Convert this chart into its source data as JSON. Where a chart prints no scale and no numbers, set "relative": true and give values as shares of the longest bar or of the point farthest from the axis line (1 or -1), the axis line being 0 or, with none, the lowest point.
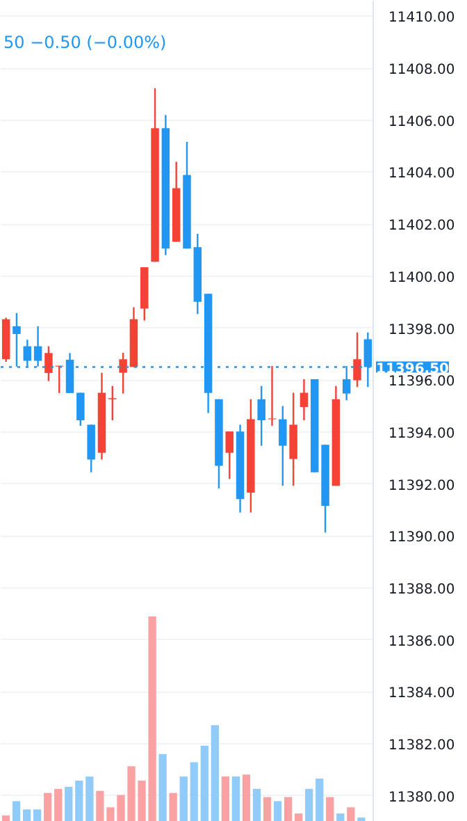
{
  "chart_data": [
    {
      "type": "candlestick",
      "categories": [
        null,
        null,
        null,
        null,
        null,
        null,
        null,
        null,
        null,
        null,
        null,
        null,
        null,
        null,
        null,
        null,
        null,
        null,
        null,
        null,
        null,
        null,
        null,
        null,
        null,
        null,
        null,
        null,
        null,
        null,
        null,
        null,
        null,
        null,
        null
      ],
      "ohlc": [
        [
          11396.8,
          11398.4,
          11396.7,
          11398.34
        ],
        [
          11398.07,
          11398.58,
          11396.52,
          11397.77
        ],
        [
          11397.3,
          11397.55,
          11396.52,
          11396.74
        ],
        [
          11397.3,
          11398.07,
          11396.52,
          11396.74
        ],
        [
          11396.27,
          11397.3,
          11395.96,
          11397.04
        ],
        [
          11396.52,
          11396.55,
          11395.5,
          11396.55
        ],
        [
          11396.78,
          11397.04,
          11395.5,
          11395.5
        ],
        [
          11395.51,
          11395.51,
          11394.24,
          11394.45
        ],
        [
          11394.28,
          11394.28,
          11392.45,
          11392.94
        ],
        [
          11393.2,
          11396.28,
          11392.94,
          11395.51
        ],
        [
          11395.26,
          11395.77,
          11394.45,
          11395.3
        ],
        [
          11396.28,
          11397.05,
          11395.48,
          11396.8
        ],
        [
          11396.5,
          11398.8,
          11396.5,
          11398.34
        ],
        [
          11398.75,
          11400.34,
          11398.29,
          11400.34
        ],
        [
          11400.55,
          11407.23,
          11400.55,
          11405.69
        ],
        [
          11405.69,
          11406.2,
          11400.81,
          11401.06
        ],
        [
          11401.32,
          11404.4,
          11401.32,
          11403.38
        ],
        [
          11403.89,
          11405.17,
          11401.06,
          11401.06
        ],
        [
          11401.11,
          11401.63,
          11398.54,
          11399.01
        ],
        [
          11399.32,
          11399.32,
          11394.73,
          11395.5
        ],
        [
          11395.26,
          11395.26,
          11391.83,
          11392.7
        ],
        [
          11393.2,
          11394.02,
          11392.19,
          11394.02
        ],
        [
          11394.02,
          11394.28,
          11390.9,
          11391.42
        ],
        [
          11391.67,
          11395.26,
          11390.9,
          11394.49
        ],
        [
          11395.26,
          11395.77,
          11393.47,
          11394.45
        ],
        [
          11394.49,
          11396.54,
          11394.24,
          11394.52
        ],
        [
          11394.49,
          11395.0,
          11391.93,
          11393.47
        ],
        [
          11392.96,
          11395.51,
          11391.93,
          11394.28
        ],
        [
          11394.96,
          11396.03,
          11394.45,
          11395.51
        ],
        [
          11396.03,
          11396.03,
          11392.45,
          11392.45
        ],
        [
          11393.51,
          11393.51,
          11390.13,
          11391.16
        ],
        [
          11391.93,
          11395.77,
          11391.93,
          11395.26
        ],
        [
          11396.03,
          11396.54,
          11395.22,
          11395.48
        ],
        [
          11395.99,
          11397.83,
          11395.73,
          11396.8
        ],
        [
          11397.57,
          11397.83,
          11395.73,
          11396.5
        ]
      ],
      "colors": [
        "#f44336",
        "#2196f3",
        "#2196f3",
        "#2196f3",
        "#f44336",
        "#f44336",
        "#2196f3",
        "#2196f3",
        "#2196f3",
        "#f44336",
        "#f44336",
        "#f44336",
        "#f44336",
        "#f44336",
        "#f44336",
        "#2196f3",
        "#f44336",
        "#2196f3",
        "#2196f3",
        "#2196f3",
        "#2196f3",
        "#f44336",
        "#2196f3",
        "#f44336",
        "#2196f3",
        "#f44336",
        "#2196f3",
        "#f44336",
        "#f44336",
        "#2196f3",
        "#2196f3",
        "#f44336",
        "#2196f3",
        "#f44336",
        "#2196f3"
      ],
      "ylim": [
        11379,
        11410.6
      ],
      "yticks": [
        {
          "value": 11380,
          "label": "11380.00"
        },
        {
          "value": 11382,
          "label": "11382.00"
        },
        {
          "value": 11384,
          "label": "11384.00"
        },
        {
          "value": 11386,
          "label": "11386.00"
        },
        {
          "value": 11388,
          "label": "11388.00"
        },
        {
          "value": 11390,
          "label": "11390.00"
        },
        {
          "value": 11392,
          "label": "11392.00"
        },
        {
          "value": 11394,
          "label": "11394.00"
        },
        {
          "value": 11396,
          "label": "11396.00"
        },
        {
          "value": 11398,
          "label": "11398.00"
        },
        {
          "value": 11400,
          "label": "11400.00"
        },
        {
          "value": 11402,
          "label": "11402.00"
        },
        {
          "value": 11404,
          "label": "11404.00"
        },
        {
          "value": 11406,
          "label": "11406.00"
        },
        {
          "value": 11408,
          "label": "11408.00"
        },
        {
          "value": 11410,
          "label": "11410.00"
        }
      ],
      "ref_lines": [
        {
          "axis": "y",
          "value": 11396.5,
          "label": "11396.50",
          "color": "#2196f3",
          "line_style": "dotted"
        }
      ],
      "annotations": [
        "50 −0.50 (−0.00%)"
      ],
      "grid": "y",
      "tick_labels": "y"
    },
    {
      "type": "bar",
      "relative": true,
      "categories": [
        null,
        null,
        null,
        null,
        null,
        null,
        null,
        null,
        null,
        null,
        null,
        null,
        null,
        null,
        null,
        null,
        null,
        null,
        null,
        null,
        null,
        null,
        null,
        null,
        null,
        null,
        null,
        null,
        null,
        null,
        null,
        null,
        null,
        null,
        null
      ],
      "values": [
        0.03,
        0.1,
        0.06,
        0.06,
        0.14,
        0.16,
        0.17,
        0.2,
        0.22,
        0.15,
        0.07,
        0.13,
        0.27,
        0.2,
        1,
        0.33,
        0.14,
        0.22,
        0.29,
        0.37,
        0.47,
        0.22,
        0.22,
        0.23,
        0.16,
        0.12,
        0.1,
        0.12,
        0.04,
        0.16,
        0.21,
        0.12,
        0.04,
        0.07,
        0.02
      ],
      "colors": [
        "#faa1a4",
        "#90cbf9",
        "#90cbf9",
        "#90cbf9",
        "#faa1a4",
        "#faa1a4",
        "#90cbf9",
        "#90cbf9",
        "#90cbf9",
        "#faa1a4",
        "#faa1a4",
        "#faa1a4",
        "#faa1a4",
        "#faa1a4",
        "#faa1a4",
        "#90cbf9",
        "#faa1a4",
        "#90cbf9",
        "#90cbf9",
        "#90cbf9",
        "#90cbf9",
        "#faa1a4",
        "#90cbf9",
        "#faa1a4",
        "#90cbf9",
        "#faa1a4",
        "#90cbf9",
        "#faa1a4",
        "#faa1a4",
        "#90cbf9",
        "#90cbf9",
        "#faa1a4",
        "#90cbf9",
        "#faa1a4",
        "#90cbf9"
      ]
    }
  ]
}
